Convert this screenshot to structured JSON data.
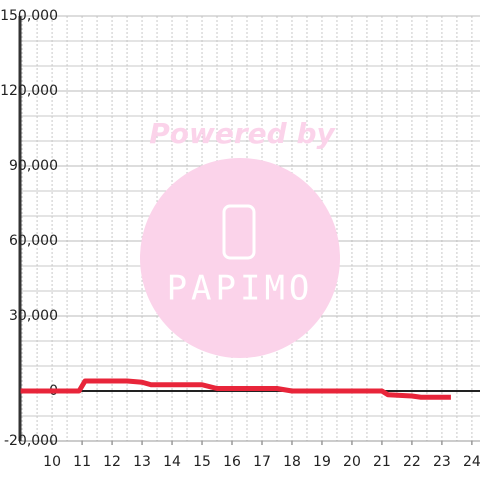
{
  "chart_data": {
    "type": "line",
    "x": [
      8.95,
      10.9,
      11.1,
      12.5,
      13,
      13.3,
      15,
      15.5,
      17.5,
      18,
      21,
      21.2,
      22,
      22.3,
      23.3
    ],
    "series": [
      {
        "color": "#e8253a",
        "values": [
          0,
          0,
          4000,
          4000,
          3500,
          2500,
          2500,
          1000,
          1000,
          0,
          0,
          -1500,
          -2000,
          -2500,
          -2500
        ]
      }
    ],
    "xlim": [
      8.93,
      24.27
    ],
    "xticks": [
      10,
      11,
      12,
      13,
      14,
      15,
      16,
      17,
      18,
      19,
      20,
      21,
      22,
      23,
      24
    ],
    "ylim": [
      -20000,
      150000
    ],
    "yticks": [
      {
        "value": -20000,
        "label": "-20,000"
      },
      0,
      {
        "value": 30000,
        "label": "30,000"
      },
      {
        "value": 60000,
        "label": "60,000"
      },
      {
        "value": 90000,
        "label": "90,000"
      },
      {
        "value": 120000,
        "label": "120,000"
      },
      {
        "value": 150000,
        "label": "150,000"
      }
    ],
    "y_minor_step": 10000,
    "x_minor_step": 0.5,
    "grid": true,
    "watermark": {
      "line1": "Powered by",
      "line2": "PAPIMO"
    }
  }
}
